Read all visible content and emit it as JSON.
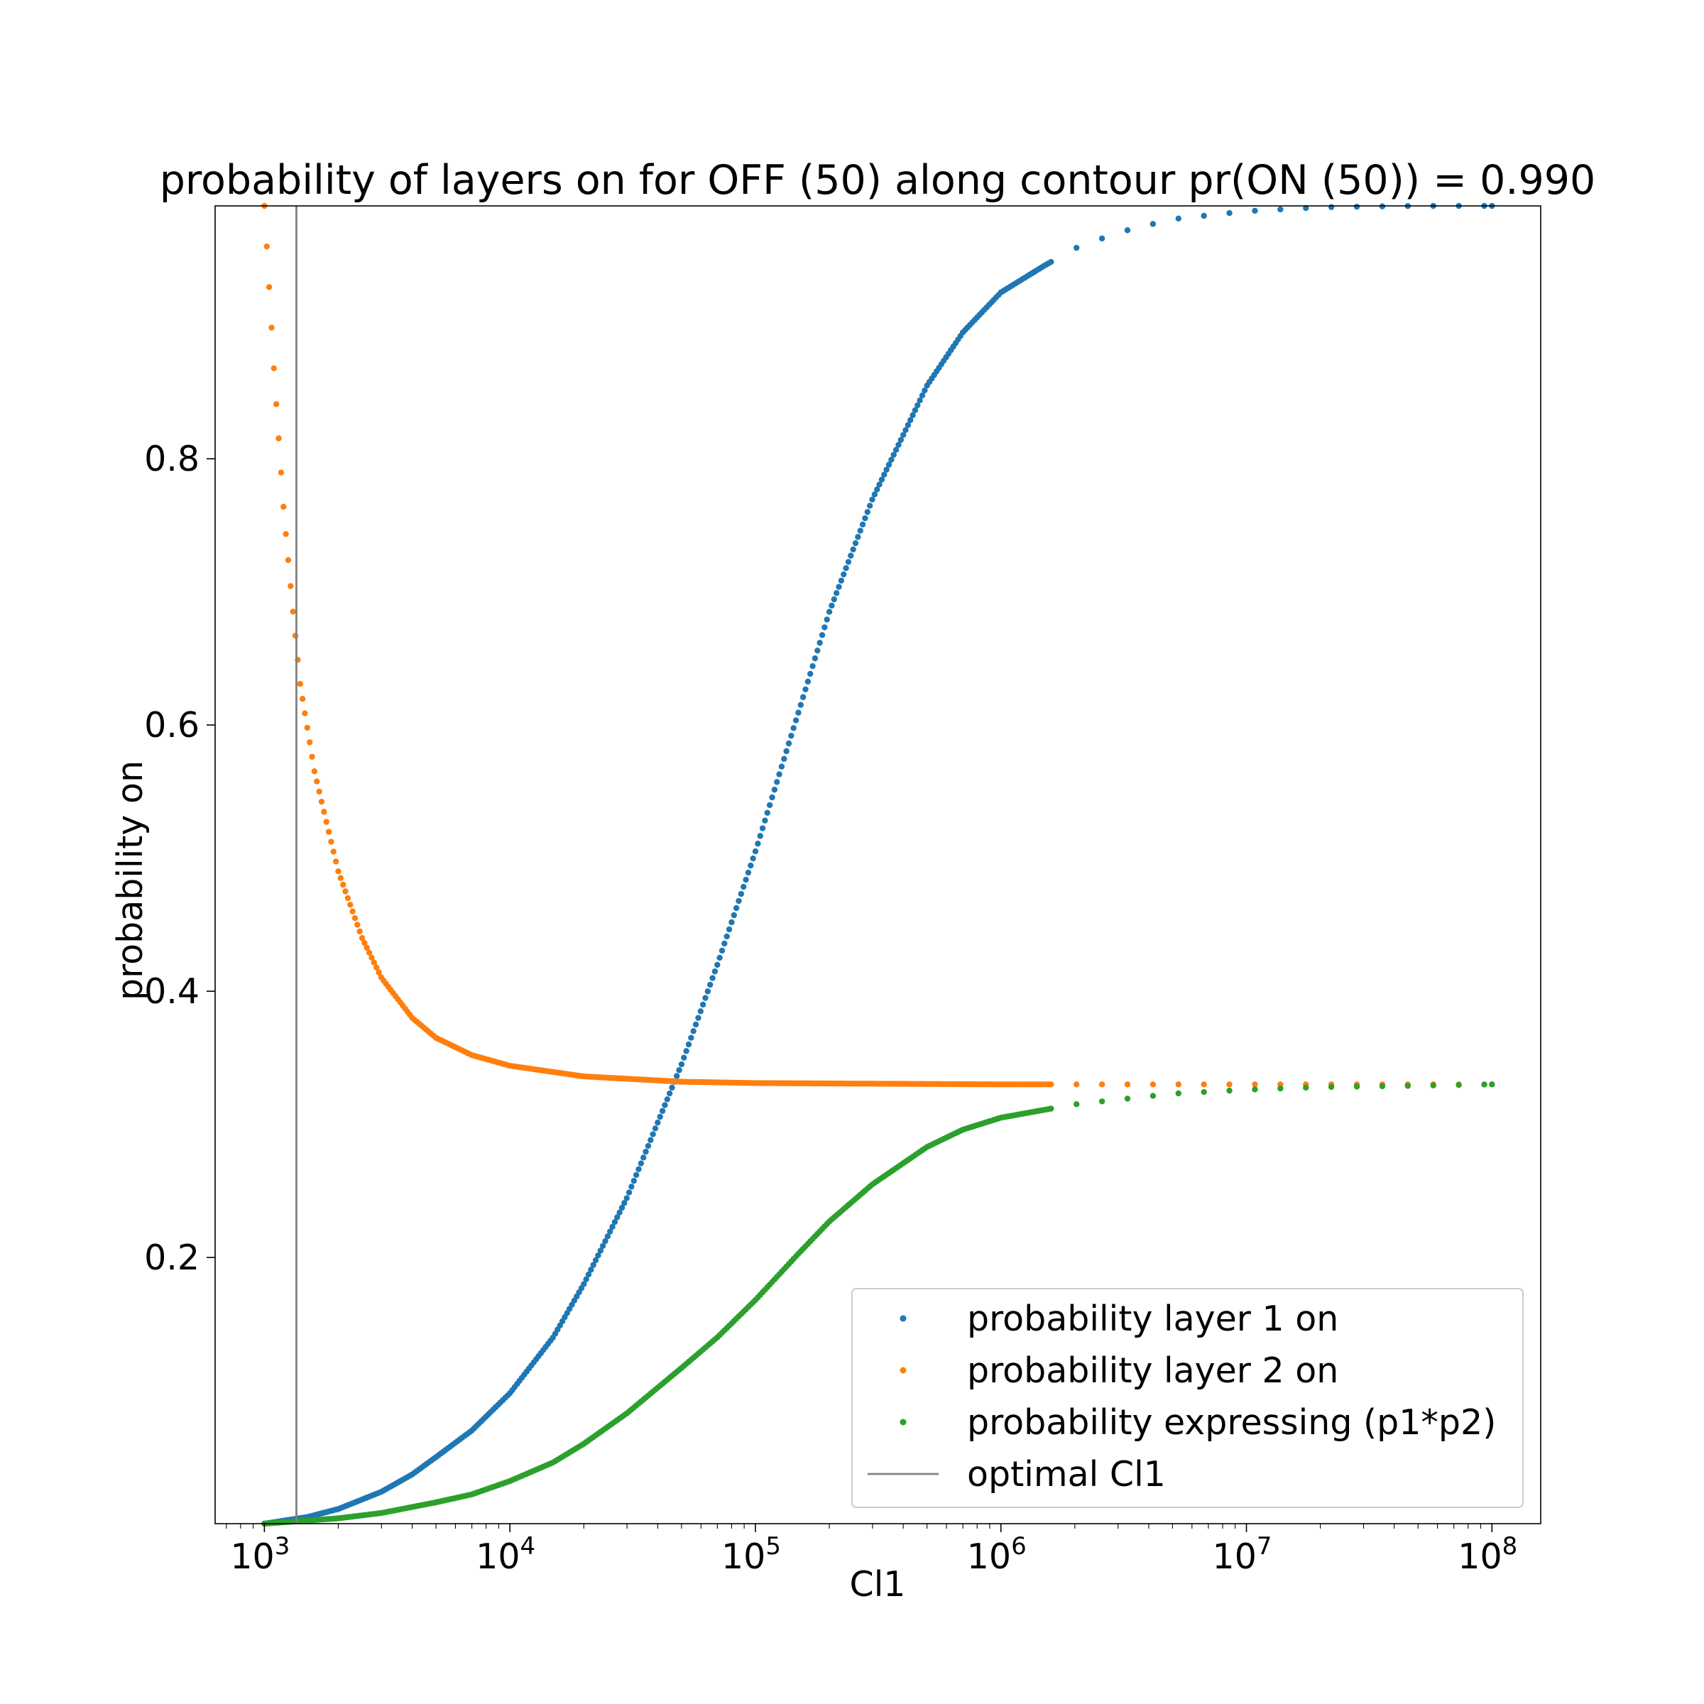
{
  "chart_data": {
    "type": "scatter",
    "title": "probability of layers on for OFF (50) along contour pr(ON (50)) = 0.990",
    "xlabel": "Cl1",
    "ylabel": "probability on",
    "xscale": "log",
    "xlim": [
      630,
      158000000
    ],
    "ylim": [
      0.0,
      0.99
    ],
    "x_ticks": [
      {
        "value": 1000,
        "base": "10",
        "exp": "3"
      },
      {
        "value": 10000,
        "base": "10",
        "exp": "4"
      },
      {
        "value": 100000,
        "base": "10",
        "exp": "5"
      },
      {
        "value": 1000000,
        "base": "10",
        "exp": "6"
      },
      {
        "value": 10000000,
        "base": "10",
        "exp": "7"
      },
      {
        "value": 100000000,
        "base": "10",
        "exp": "8"
      }
    ],
    "y_ticks": [
      {
        "value": 0.2,
        "label": "0.2"
      },
      {
        "value": 0.4,
        "label": "0.4"
      },
      {
        "value": 0.6,
        "label": "0.6"
      },
      {
        "value": 0.8,
        "label": "0.8"
      }
    ],
    "grid": false,
    "legend_position": "lower-right",
    "vline": {
      "name": "optimal Cl1",
      "x": 1350,
      "color": "#808080"
    },
    "series": [
      {
        "name": "probability layer 1 on",
        "color": "#1f77b4",
        "points": [
          [
            1000,
            0.0
          ],
          [
            1500,
            0.005
          ],
          [
            2000,
            0.011
          ],
          [
            3000,
            0.024
          ],
          [
            4000,
            0.037
          ],
          [
            5000,
            0.05
          ],
          [
            7000,
            0.07
          ],
          [
            10000,
            0.098
          ],
          [
            15000,
            0.14
          ],
          [
            20000,
            0.18
          ],
          [
            30000,
            0.245
          ],
          [
            50000,
            0.345
          ],
          [
            70000,
            0.42
          ],
          [
            100000,
            0.505
          ],
          [
            150000,
            0.61
          ],
          [
            200000,
            0.685
          ],
          [
            300000,
            0.77
          ],
          [
            500000,
            0.855
          ],
          [
            700000,
            0.895
          ],
          [
            1000000,
            0.925
          ],
          [
            1500000,
            0.945
          ],
          [
            2000000,
            0.958
          ],
          [
            3000000,
            0.97
          ],
          [
            5000000,
            0.98
          ],
          [
            10000000,
            0.986
          ],
          [
            20000000,
            0.989
          ],
          [
            50000000,
            0.99
          ],
          [
            100000000,
            0.99
          ]
        ]
      },
      {
        "name": "probability layer 2 on",
        "color": "#ff7f0e",
        "points": [
          [
            1000,
            0.99
          ],
          [
            1100,
            0.86
          ],
          [
            1200,
            0.76
          ],
          [
            1300,
            0.69
          ],
          [
            1400,
            0.63
          ],
          [
            1600,
            0.565
          ],
          [
            1800,
            0.525
          ],
          [
            2000,
            0.49
          ],
          [
            2500,
            0.44
          ],
          [
            3000,
            0.41
          ],
          [
            4000,
            0.38
          ],
          [
            5000,
            0.365
          ],
          [
            7000,
            0.352
          ],
          [
            10000,
            0.344
          ],
          [
            20000,
            0.336
          ],
          [
            50000,
            0.332
          ],
          [
            100000,
            0.331
          ],
          [
            1000000,
            0.33
          ],
          [
            10000000,
            0.33
          ],
          [
            100000000,
            0.33
          ]
        ]
      },
      {
        "name": "probability expressing (p1*p2)",
        "color": "#2ca02c",
        "points": [
          [
            1000,
            0.0
          ],
          [
            2000,
            0.004
          ],
          [
            3000,
            0.008
          ],
          [
            5000,
            0.016
          ],
          [
            7000,
            0.022
          ],
          [
            10000,
            0.032
          ],
          [
            15000,
            0.046
          ],
          [
            20000,
            0.06
          ],
          [
            30000,
            0.083
          ],
          [
            50000,
            0.117
          ],
          [
            70000,
            0.14
          ],
          [
            100000,
            0.168
          ],
          [
            150000,
            0.203
          ],
          [
            200000,
            0.227
          ],
          [
            300000,
            0.255
          ],
          [
            500000,
            0.283
          ],
          [
            700000,
            0.296
          ],
          [
            1000000,
            0.305
          ],
          [
            2000000,
            0.315
          ],
          [
            5000000,
            0.323
          ],
          [
            10000000,
            0.326
          ],
          [
            20000000,
            0.328
          ],
          [
            50000000,
            0.329
          ],
          [
            100000000,
            0.33
          ]
        ]
      }
    ]
  }
}
